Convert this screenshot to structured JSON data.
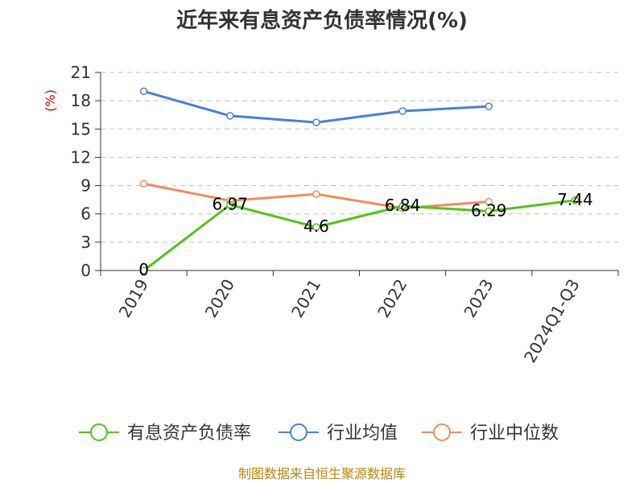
{
  "chart_data": {
    "type": "line",
    "title": "近年来有息资产负债率情况(%)",
    "ylabel": "(%)",
    "categories": [
      "2019",
      "2020",
      "2021",
      "2022",
      "2023",
      "2024Q1-Q3"
    ],
    "ylim": [
      0,
      21
    ],
    "yticks": [
      0,
      3,
      6,
      9,
      12,
      15,
      18,
      21
    ],
    "grid": true,
    "legend_position": "bottom",
    "series": [
      {
        "name": "有息资产负债率",
        "color": "#52c41a",
        "values": [
          0,
          6.97,
          4.6,
          6.84,
          6.29,
          7.44
        ],
        "labels": [
          "0",
          "6.97",
          "4.6",
          "6.84",
          "6.29",
          "7.44"
        ]
      },
      {
        "name": "行业均值",
        "color": "#4a7fd8",
        "values": [
          19.0,
          16.4,
          15.7,
          16.9,
          17.4,
          null
        ]
      },
      {
        "name": "行业中位数",
        "color": "#f28c5a",
        "values": [
          9.2,
          7.4,
          8.1,
          6.6,
          7.3,
          null
        ]
      }
    ]
  },
  "source": "制图数据来自恒生聚源数据库"
}
